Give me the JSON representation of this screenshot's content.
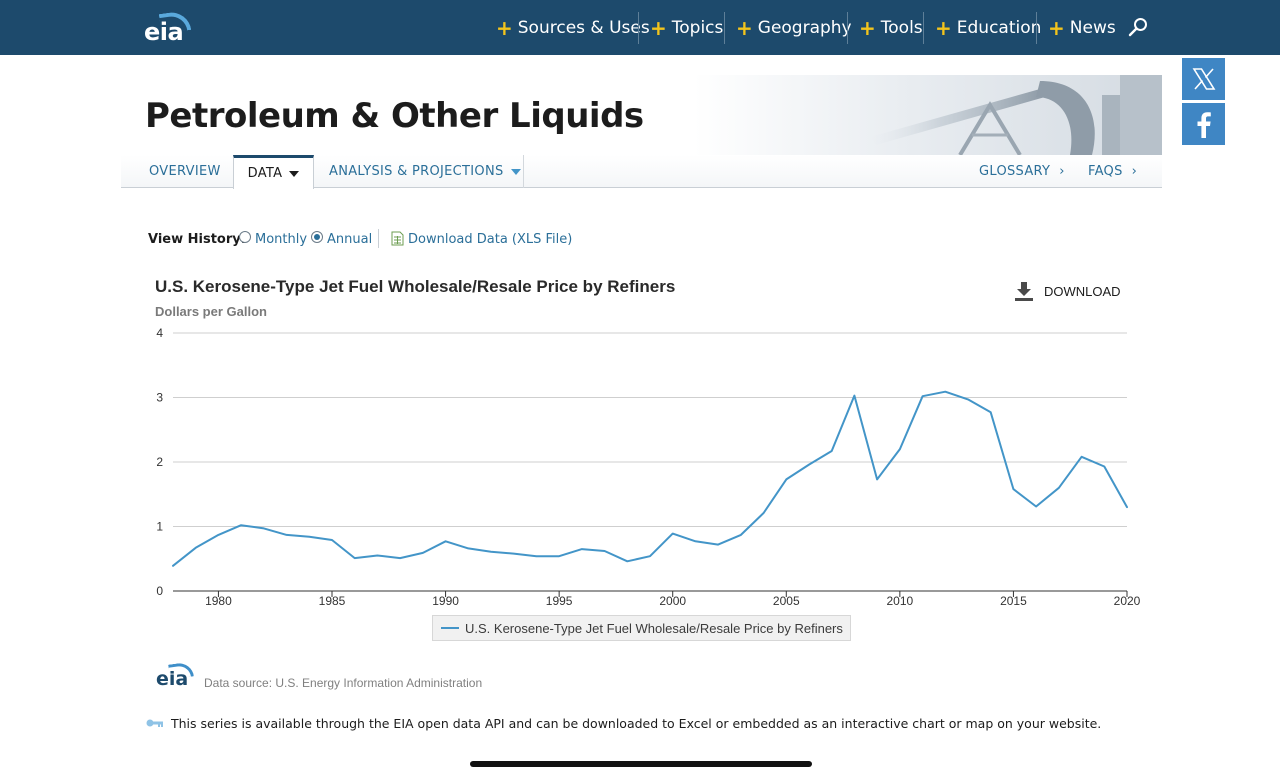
{
  "nav": {
    "logo_text": "eia",
    "items": [
      {
        "label": "Sources & Uses"
      },
      {
        "label": "Topics"
      },
      {
        "label": "Geography"
      },
      {
        "label": "Tools"
      },
      {
        "label": "Education"
      },
      {
        "label": "News"
      }
    ]
  },
  "page": {
    "title": "Petroleum & Other Liquids"
  },
  "subnav": {
    "overview": "OVERVIEW",
    "data": "DATA",
    "analysis": "ANALYSIS & PROJECTIONS",
    "glossary": "GLOSSARY",
    "faqs": "FAQS",
    "chevron": "›"
  },
  "view_history": {
    "label": "View History:",
    "monthly": "Monthly",
    "annual": "Annual",
    "selected": "Annual",
    "download_link": "Download Data (XLS File)"
  },
  "download_button": "DOWNLOAD",
  "colors": {
    "nav_bg": "#1d4a6c",
    "accent": "#f3c41c",
    "link": "#2b6f99",
    "series": "#4395c8",
    "social": "#3f86c4"
  },
  "chart_data": {
    "type": "line",
    "title": "U.S. Kerosene-Type Jet Fuel Wholesale/Resale Price by Refiners",
    "ylabel": "Dollars per Gallon",
    "xlabel": "",
    "ylim": [
      0,
      4
    ],
    "xlim": [
      1978,
      2020
    ],
    "yticks": [
      0,
      1,
      2,
      3,
      4
    ],
    "xticks": [
      1980,
      1985,
      1990,
      1995,
      2000,
      2005,
      2010,
      2015,
      2020
    ],
    "grid": true,
    "legend_position": "bottom",
    "series": [
      {
        "name": "U.S. Kerosene-Type Jet Fuel Wholesale/Resale Price by Refiners",
        "x": [
          1978,
          1979,
          1980,
          1981,
          1982,
          1983,
          1984,
          1985,
          1986,
          1987,
          1988,
          1989,
          1990,
          1991,
          1992,
          1993,
          1994,
          1995,
          1996,
          1997,
          1998,
          1999,
          2000,
          2001,
          2002,
          2003,
          2004,
          2005,
          2006,
          2007,
          2008,
          2009,
          2010,
          2011,
          2012,
          2013,
          2014,
          2015,
          2016,
          2017,
          2018,
          2019,
          2020
        ],
        "y": [
          0.39,
          0.67,
          0.87,
          1.02,
          0.97,
          0.87,
          0.84,
          0.79,
          0.51,
          0.55,
          0.51,
          0.59,
          0.77,
          0.66,
          0.61,
          0.58,
          0.54,
          0.54,
          0.65,
          0.62,
          0.46,
          0.54,
          0.89,
          0.77,
          0.72,
          0.87,
          1.21,
          1.73,
          1.96,
          2.17,
          3.03,
          1.73,
          2.2,
          3.02,
          3.09,
          2.97,
          2.77,
          1.58,
          1.31,
          1.6,
          2.08,
          1.93,
          1.3
        ]
      }
    ]
  },
  "footer": {
    "logo_text": "eia",
    "source": "Data source: U.S. Energy Information Administration",
    "api_note": "This series is available through the EIA open data API and can be downloaded to Excel or embedded as an interactive chart or map on your website."
  }
}
